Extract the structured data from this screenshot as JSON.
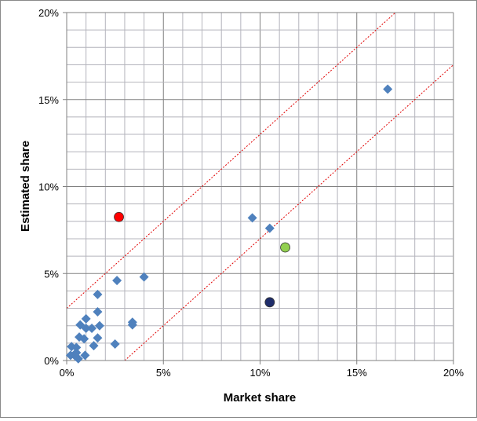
{
  "chart_data": {
    "type": "scatter",
    "xlabel": "Market share",
    "ylabel": "Estimated share",
    "xlim": [
      0,
      20
    ],
    "ylim": [
      0,
      20
    ],
    "x_ticks": [
      "0%",
      "5%",
      "10%",
      "15%",
      "20%"
    ],
    "y_ticks": [
      "0%",
      "5%",
      "10%",
      "15%",
      "20%"
    ],
    "x_tick_values": [
      0,
      5,
      10,
      15,
      20
    ],
    "y_tick_values": [
      0,
      5,
      10,
      15,
      20
    ],
    "grid": true,
    "minor_grid_step": 1,
    "series": [
      {
        "marker": "diamond",
        "color": "#4f81bd",
        "points": [
          [
            16.6,
            15.6
          ],
          [
            9.6,
            8.2
          ],
          [
            10.5,
            7.6
          ],
          [
            4.0,
            4.8
          ],
          [
            2.6,
            4.6
          ],
          [
            1.6,
            3.8
          ],
          [
            1.6,
            2.8
          ],
          [
            3.4,
            2.2
          ],
          [
            3.4,
            2.05
          ],
          [
            1.0,
            2.4
          ],
          [
            0.7,
            2.05
          ],
          [
            1.7,
            2.0
          ],
          [
            1.3,
            1.85
          ],
          [
            1.0,
            1.85
          ],
          [
            1.6,
            1.3
          ],
          [
            0.65,
            1.35
          ],
          [
            0.9,
            1.25
          ],
          [
            2.5,
            0.95
          ],
          [
            1.4,
            0.85
          ],
          [
            0.25,
            0.8
          ],
          [
            0.5,
            0.75
          ],
          [
            0.95,
            0.3
          ],
          [
            0.5,
            0.45
          ],
          [
            0.2,
            0.3
          ],
          [
            0.45,
            0.25
          ],
          [
            0.6,
            0.1
          ]
        ]
      },
      {
        "marker": "circle",
        "color": "#ff0000",
        "points": [
          [
            2.7,
            8.25
          ]
        ]
      },
      {
        "marker": "circle",
        "color": "#92d050",
        "points": [
          [
            11.3,
            6.5
          ]
        ]
      },
      {
        "marker": "circle",
        "color": "#1f2d6b",
        "points": [
          [
            10.5,
            3.35
          ]
        ]
      }
    ],
    "reference_lines": [
      {
        "style": "dotted",
        "color": "#e00000",
        "intercept": 3,
        "slope": 1
      },
      {
        "style": "dotted",
        "color": "#e00000",
        "intercept": -3,
        "slope": 1
      }
    ]
  }
}
